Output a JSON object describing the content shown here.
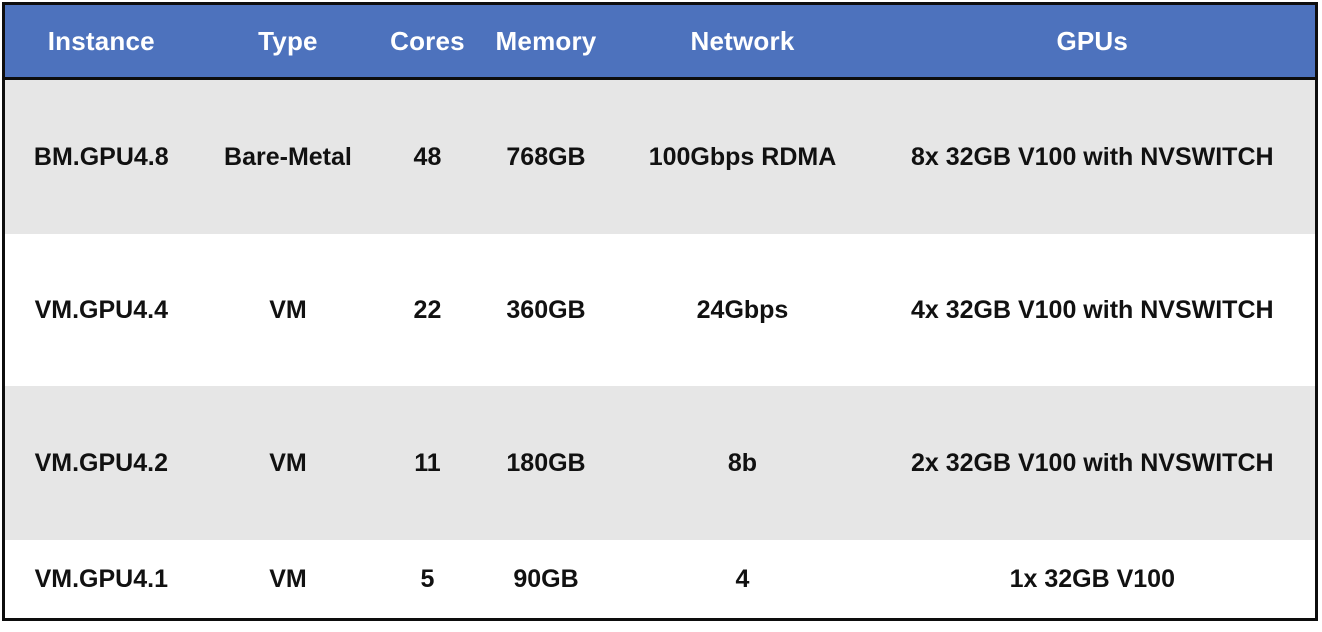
{
  "table": {
    "columns": [
      "Instance",
      "Type",
      "Cores",
      "Memory",
      "Network",
      "GPUs"
    ],
    "rows": [
      {
        "cells": [
          "BM.GPU4.8",
          "Bare-Metal",
          "48",
          "768GB",
          "100Gbps RDMA",
          "8x 32GB V100 with NVSWITCH"
        ]
      },
      {
        "cells": [
          "VM.GPU4.4",
          "VM",
          "22",
          "360GB",
          "24Gbps",
          "4x 32GB V100 with NVSWITCH"
        ]
      },
      {
        "cells": [
          "VM.GPU4.2",
          "VM",
          "11",
          "180GB",
          "8b",
          "2x 32GB V100 with NVSWITCH"
        ]
      },
      {
        "cells": [
          "VM.GPU4.1",
          "VM",
          "5",
          "90GB",
          "4",
          "1x 32GB V100"
        ]
      }
    ],
    "colors": {
      "header_bg": "#4d72bd",
      "header_text": "#ffffff",
      "row_band_gray": "#e6e6e6",
      "row_band_white": "#ffffff",
      "body_text": "#111111",
      "border": "#0d0d0d"
    }
  }
}
